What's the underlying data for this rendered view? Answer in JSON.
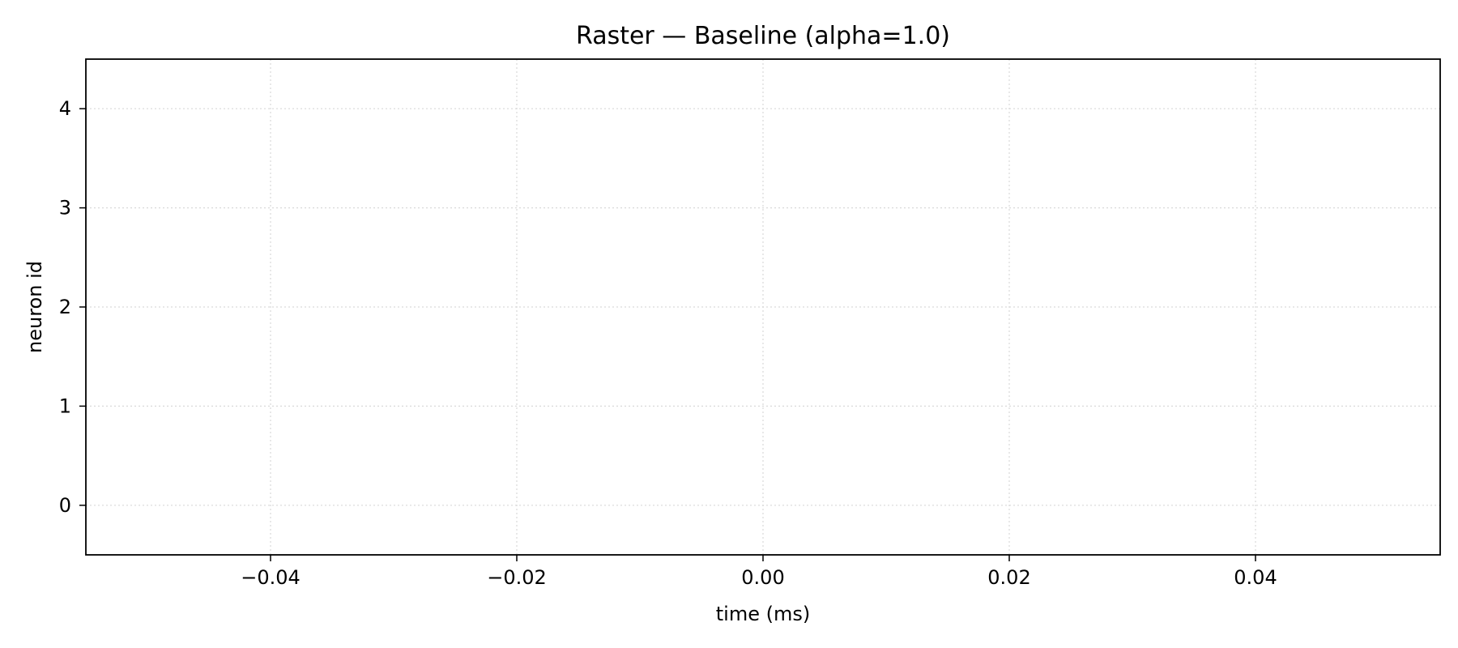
{
  "chart_data": {
    "type": "scatter",
    "title": "Raster — Baseline (alpha=1.0)",
    "xlabel": "time (ms)",
    "ylabel": "neuron id",
    "xlim": [
      -0.055,
      0.055
    ],
    "ylim": [
      -0.5,
      4.5
    ],
    "x_ticks": [
      -0.04,
      -0.02,
      0.0,
      0.02,
      0.04
    ],
    "x_tick_labels": [
      "−0.04",
      "−0.02",
      "0.00",
      "0.02",
      "0.04"
    ],
    "y_ticks": [
      0,
      1,
      2,
      3,
      4
    ],
    "y_tick_labels": [
      "0",
      "1",
      "2",
      "3",
      "4"
    ],
    "grid": true,
    "series": [
      {
        "x": [],
        "y": []
      }
    ]
  }
}
